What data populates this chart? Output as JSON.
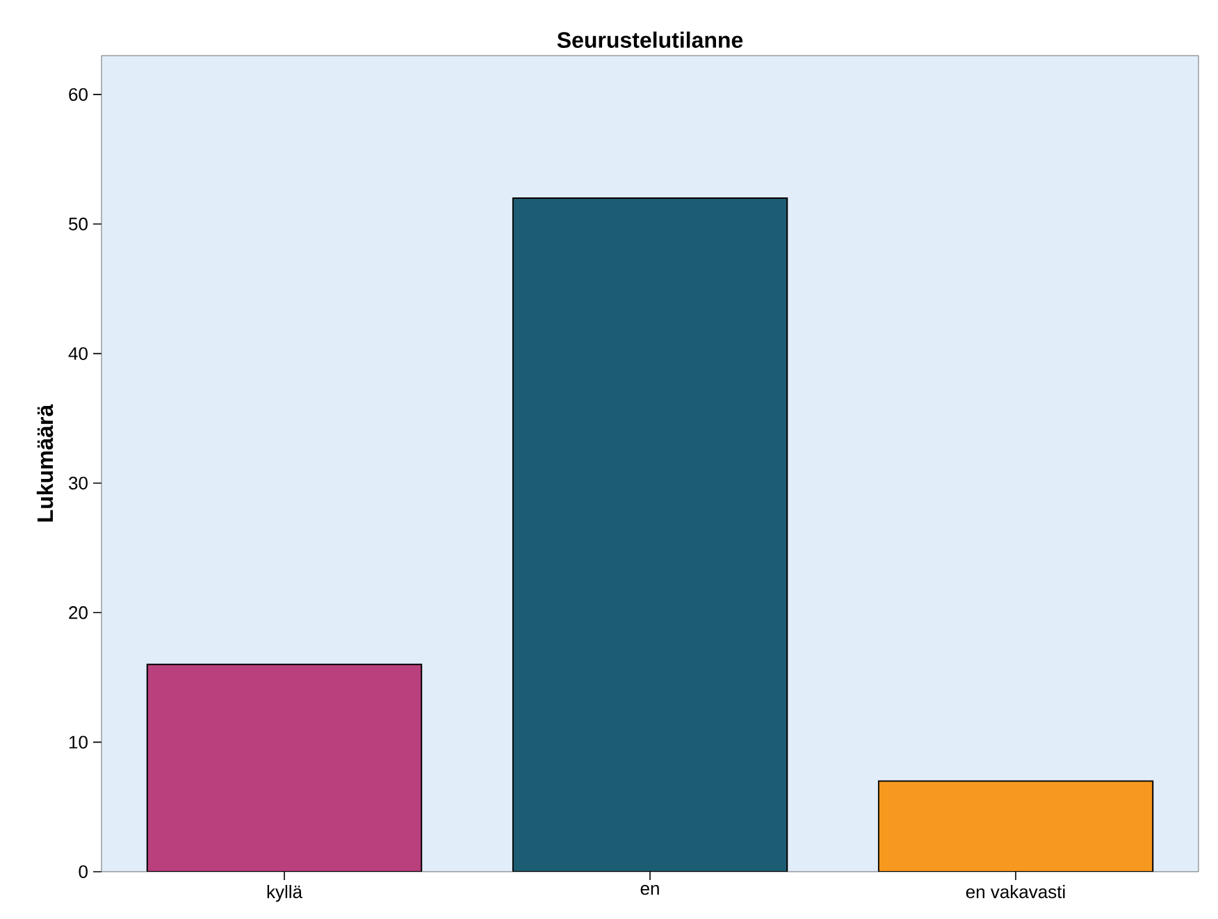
{
  "chart_data": {
    "type": "bar",
    "title": "Seurustelutilanne",
    "ylabel": "Lukumäärä",
    "categories": [
      "kyllä",
      "en",
      "en vakavasti"
    ],
    "values": [
      16,
      52,
      7
    ],
    "colors": [
      "#b93f7d",
      "#1c5d74",
      "#f7991e"
    ],
    "ylim": [
      0,
      63
    ],
    "yticks": [
      0,
      10,
      20,
      30,
      40,
      50,
      60
    ],
    "grid": false
  }
}
